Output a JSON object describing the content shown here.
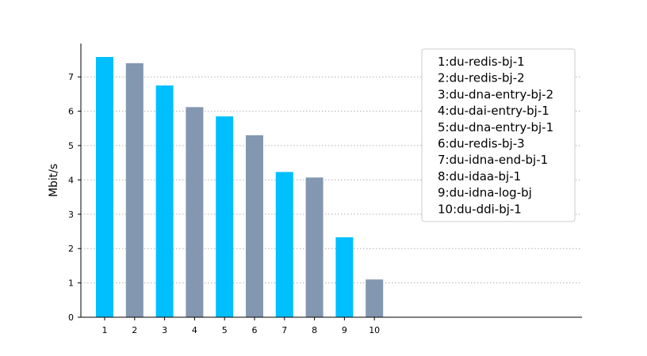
{
  "chart_data": {
    "type": "bar",
    "ylabel": "Mbit/s",
    "categories": [
      "1",
      "2",
      "3",
      "4",
      "5",
      "6",
      "7",
      "8",
      "9",
      "10"
    ],
    "values": [
      7.58,
      7.4,
      6.75,
      6.12,
      5.85,
      5.3,
      4.23,
      4.07,
      2.33,
      1.1
    ],
    "ylim": [
      0,
      8
    ],
    "yticks": [
      "0",
      "1",
      "2",
      "3",
      "4",
      "5",
      "6",
      "7"
    ],
    "grid": "horizontal-dotted",
    "legend_placement": "top-right",
    "legend": [
      "1:du-redis-bj-1",
      "2:du-redis-bj-2",
      "3:du-dna-entry-bj-2",
      "4:du-dai-entry-bj-1",
      "5:du-dna-entry-bj-1",
      "6:du-redis-bj-3",
      "7:du-idna-end-bj-1",
      "8:du-idaa-bj-1",
      "9:du-idna-log-bj",
      "10:du-ddi-bj-1"
    ],
    "colors": [
      "#00bfff",
      "#8497b0"
    ]
  }
}
